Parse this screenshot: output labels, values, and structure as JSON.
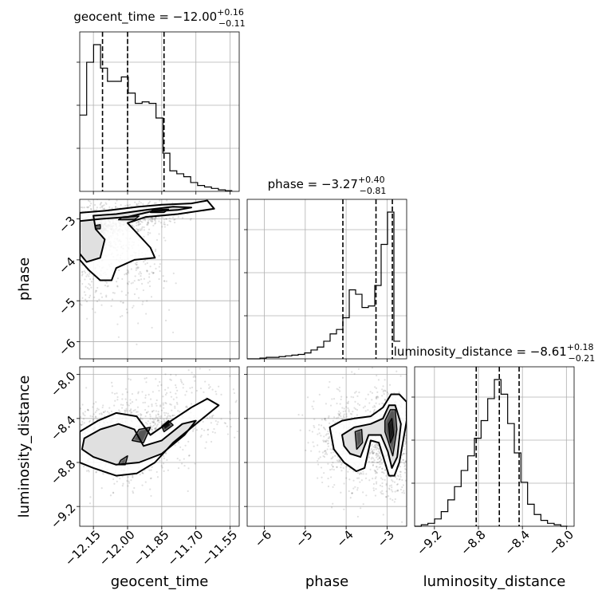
{
  "chart_data": {
    "type": "corner",
    "parameters": [
      "geocent_time",
      "phase",
      "luminosity_distance"
    ],
    "axis_labels": [
      "geocent_time",
      "phase",
      "luminosity_distance"
    ],
    "ranges": [
      [
        -12.21,
        -11.51
      ],
      [
        -6.42,
        -2.52
      ],
      [
        -9.38,
        -7.93
      ]
    ],
    "ticks": [
      {
        "values": [
          -12.15,
          -12.0,
          -11.85,
          -11.7,
          -11.55
        ],
        "labels": [
          "−12.15",
          "−12.00",
          "−11.85",
          "−11.70",
          "−11.55"
        ]
      },
      {
        "values": [
          -6,
          -5,
          -4,
          -3
        ],
        "labels": [
          "−6",
          "−5",
          "−4",
          "−3"
        ]
      },
      {
        "values": [
          -9.2,
          -8.8,
          -8.4,
          -8.0
        ],
        "labels": [
          "−9.2",
          "−8.8",
          "−8.4",
          "−8.0"
        ]
      }
    ],
    "titles": [
      {
        "param": "geocent_time",
        "median": "−12.00",
        "plus": "+0.16",
        "minus": "−0.11"
      },
      {
        "param": "phase",
        "median": "−3.27",
        "plus": "+0.40",
        "minus": "−0.81"
      },
      {
        "param": "luminosity_distance",
        "median": "−8.61",
        "plus": "+0.18",
        "minus": "−0.21"
      }
    ],
    "quantiles": [
      [
        -12.11,
        -12.0,
        -11.84
      ],
      [
        -4.08,
        -3.27,
        -2.87
      ],
      [
        -8.82,
        -8.61,
        -8.43
      ]
    ],
    "histograms": [
      {
        "edges_range": [
          -12.21,
          -11.51
        ],
        "counts": [
          0.52,
          0.88,
          1.0,
          0.84,
          0.75,
          0.75,
          0.78,
          0.67,
          0.6,
          0.61,
          0.6,
          0.5,
          0.26,
          0.14,
          0.12,
          0.1,
          0.06,
          0.04,
          0.03,
          0.02,
          0.01,
          0.005
        ]
      },
      {
        "edges_range": [
          -6.42,
          -2.52
        ],
        "counts": [
          0,
          0,
          0.005,
          0.01,
          0.01,
          0.015,
          0.02,
          0.025,
          0.03,
          0.04,
          0.06,
          0.08,
          0.12,
          0.17,
          0.2,
          0.28,
          0.47,
          0.44,
          0.35,
          0.36,
          0.5,
          0.78,
          1.0,
          0.12
        ]
      },
      {
        "edges_range": [
          -9.38,
          -7.93
        ],
        "counts": [
          0,
          0.01,
          0.02,
          0.05,
          0.1,
          0.18,
          0.27,
          0.38,
          0.48,
          0.6,
          0.72,
          0.87,
          1.0,
          0.9,
          0.7,
          0.5,
          0.3,
          0.15,
          0.08,
          0.04,
          0.02,
          0.01,
          0.0
        ]
      }
    ],
    "grid": true
  }
}
